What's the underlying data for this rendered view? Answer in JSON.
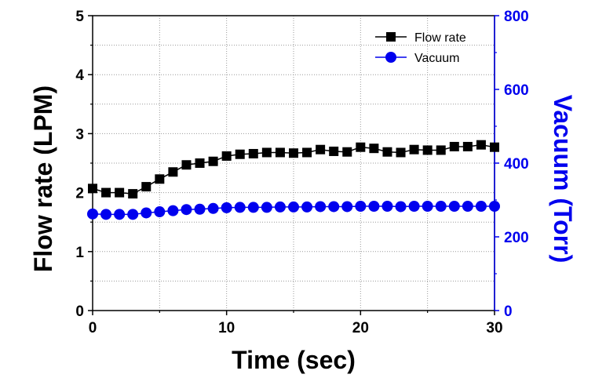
{
  "chart_data": {
    "type": "line",
    "xlabel": "Time (sec)",
    "ylabel_left": "Flow rate (LPM)",
    "ylabel_right": "Vacuum (Torr)",
    "xlim": [
      0,
      30
    ],
    "ylim_left": [
      0,
      5
    ],
    "ylim_right": [
      0,
      800
    ],
    "x_ticks": [
      "0",
      "10",
      "20",
      "30"
    ],
    "y_ticks_left": [
      "0",
      "1",
      "2",
      "3",
      "4",
      "5"
    ],
    "y_ticks_right": [
      "0",
      "200",
      "400",
      "600",
      "800"
    ],
    "grid": true,
    "legend_position": "top-right",
    "x": [
      0,
      1,
      2,
      3,
      4,
      5,
      6,
      7,
      8,
      9,
      10,
      11,
      12,
      13,
      14,
      15,
      16,
      17,
      18,
      19,
      20,
      21,
      22,
      23,
      24,
      25,
      26,
      27,
      28,
      29,
      30
    ],
    "series": [
      {
        "name": "Flow rate",
        "axis": "left",
        "color": "#000000",
        "marker": "square",
        "values": [
          2.07,
          2.0,
          2.0,
          1.98,
          2.1,
          2.23,
          2.35,
          2.47,
          2.5,
          2.53,
          2.62,
          2.65,
          2.66,
          2.68,
          2.68,
          2.67,
          2.68,
          2.73,
          2.7,
          2.69,
          2.77,
          2.75,
          2.69,
          2.68,
          2.73,
          2.72,
          2.72,
          2.78,
          2.78,
          2.81,
          2.77
        ]
      },
      {
        "name": "Vacuum",
        "axis": "right",
        "color": "#0000ee",
        "marker": "circle",
        "values": [
          262,
          261,
          261,
          261,
          265,
          268,
          271,
          274,
          275,
          277,
          279,
          280,
          280,
          280,
          281,
          281,
          281,
          282,
          282,
          282,
          283,
          283,
          283,
          282,
          283,
          283,
          283,
          283,
          283,
          283,
          283
        ]
      }
    ]
  }
}
